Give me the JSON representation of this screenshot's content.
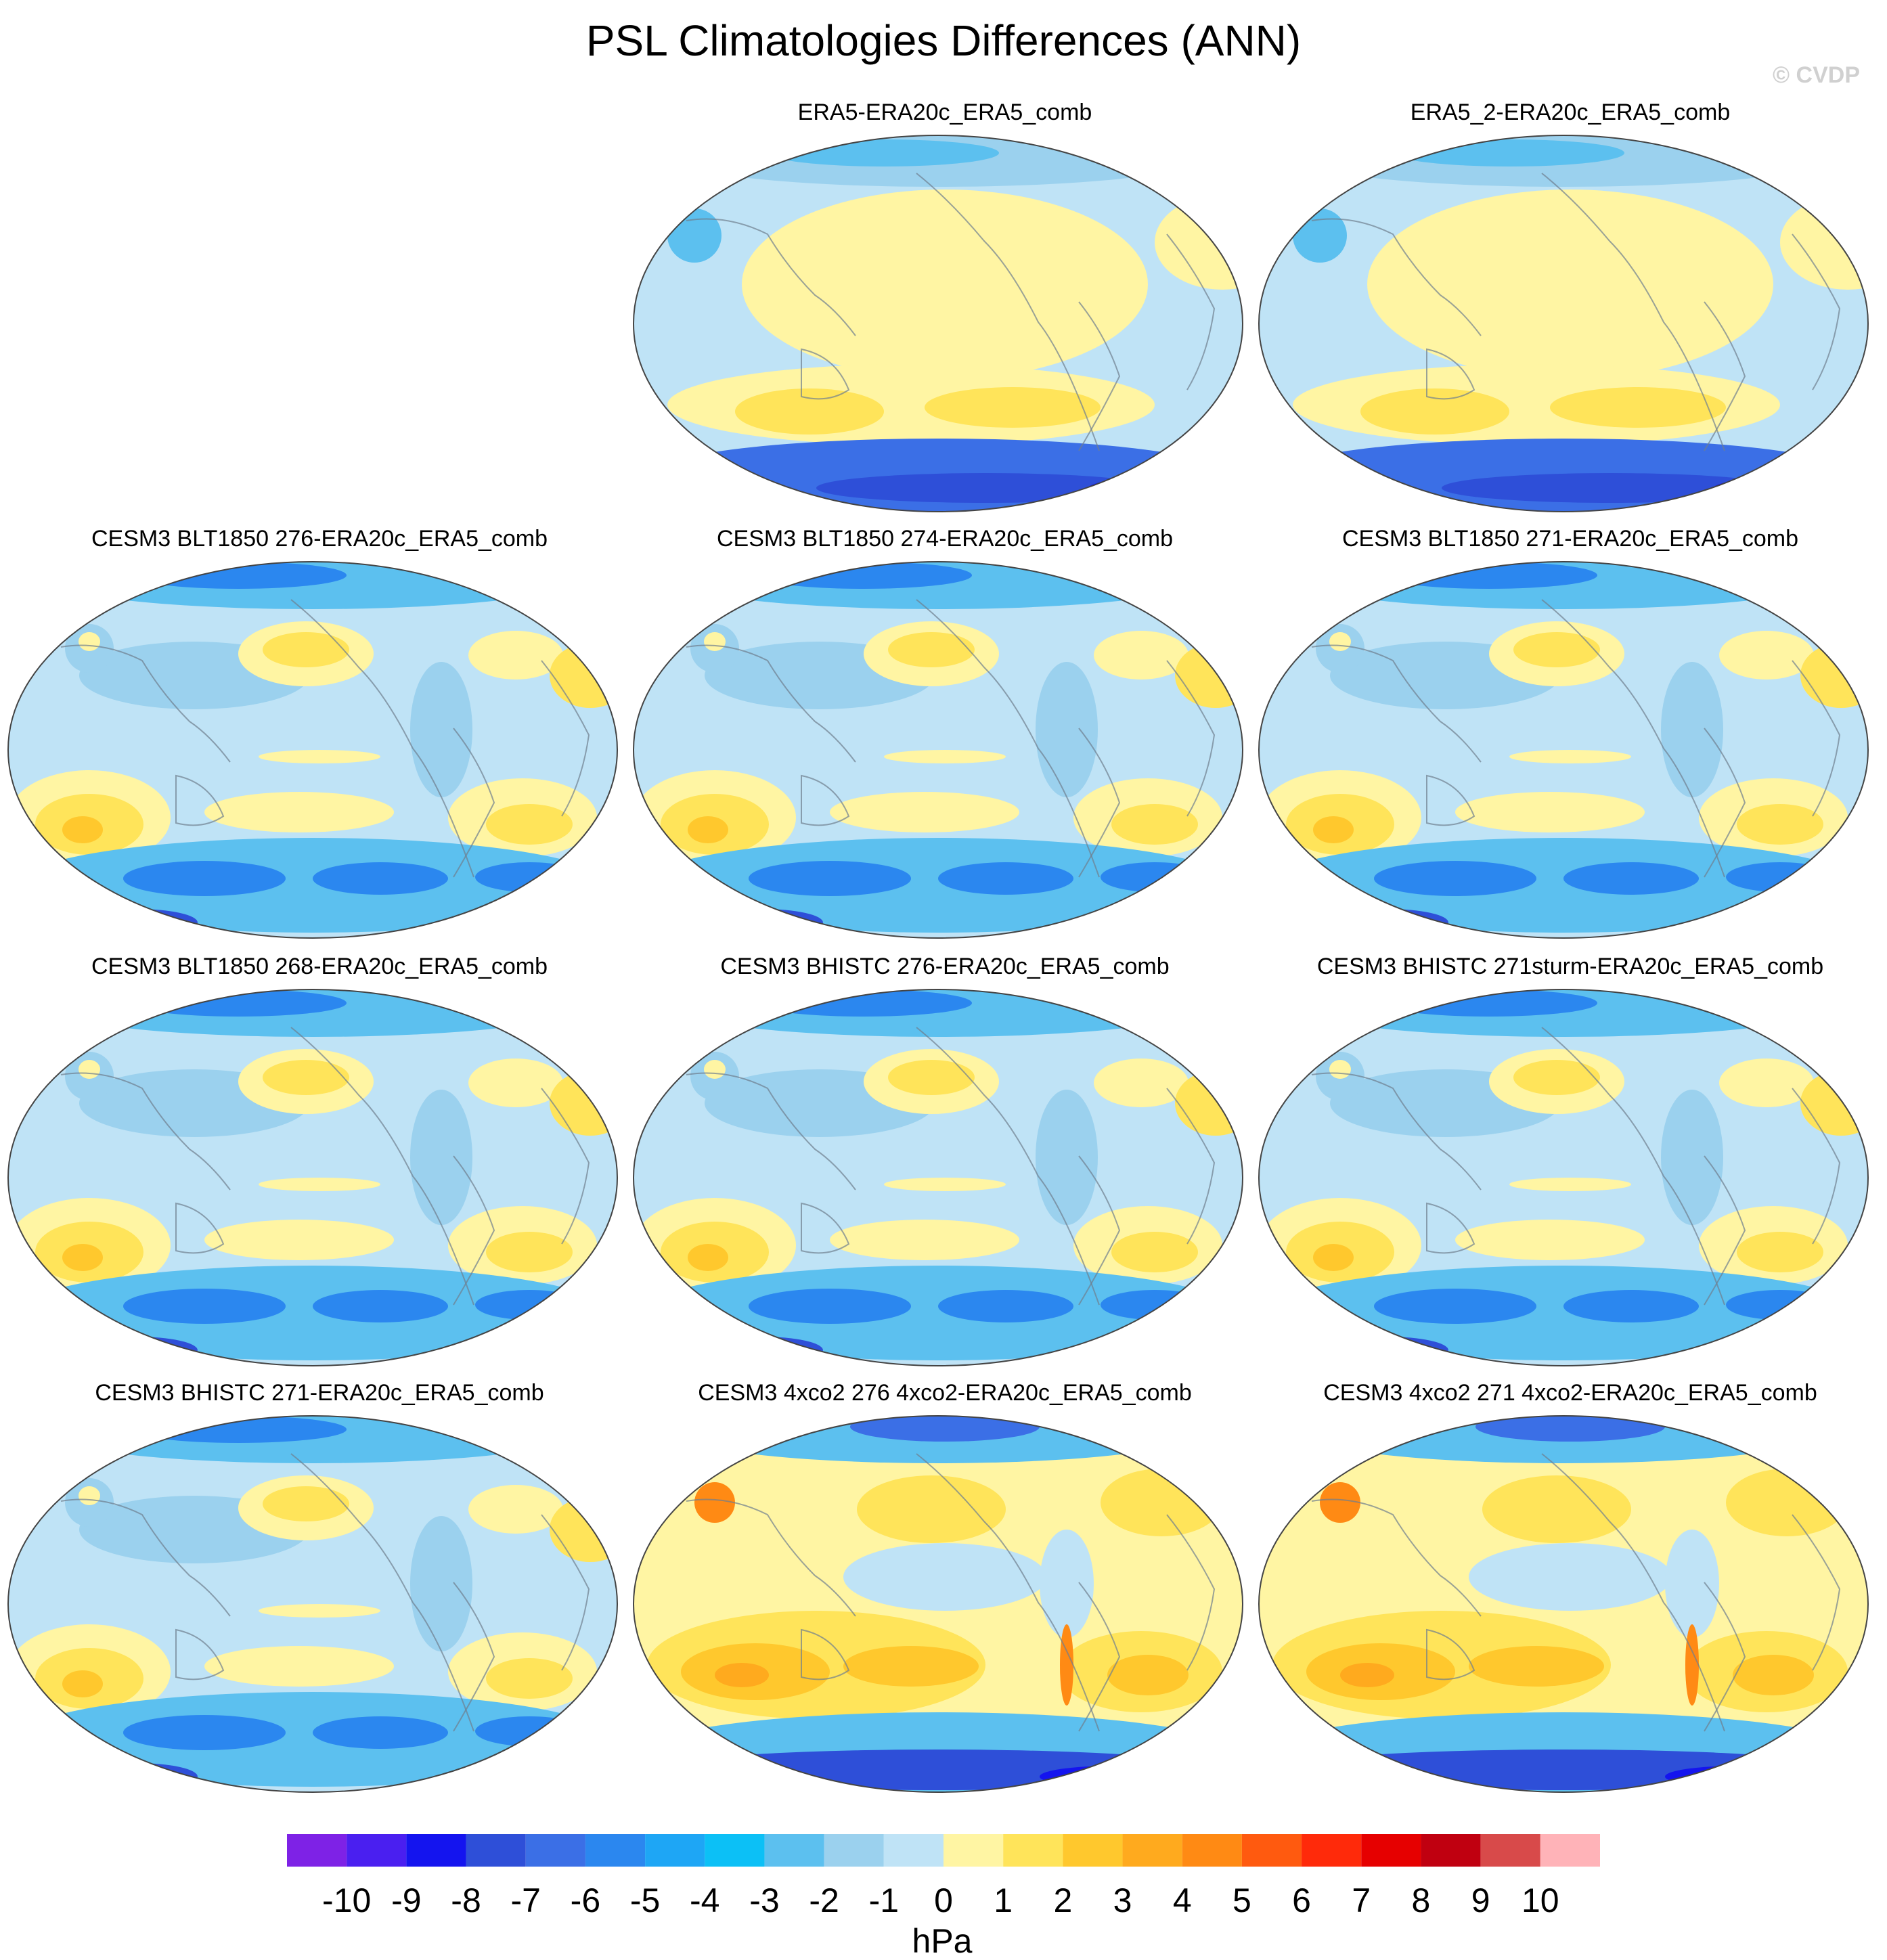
{
  "title": "PSL Climatologies Differences (ANN)",
  "watermark": "© CVDP",
  "units": "hPa",
  "colorbar": {
    "labels": [
      "-10",
      "-9",
      "-8",
      "-7",
      "-6",
      "-5",
      "-4",
      "-3",
      "-2",
      "-1",
      "0",
      "1",
      "2",
      "3",
      "4",
      "5",
      "6",
      "7",
      "8",
      "9",
      "10"
    ],
    "colors": [
      "#7e22e6",
      "#4a1ff0",
      "#1414ef",
      "#2e4fd8",
      "#3b6fe6",
      "#2b87ef",
      "#1ea6f5",
      "#0cc0f6",
      "#5cc0ef",
      "#9bd1ee",
      "#bfe3f6",
      "#fff5a3",
      "#ffe45a",
      "#ffc82d",
      "#ffaa1e",
      "#ff8a14",
      "#ff5a0f",
      "#ff2a0a",
      "#e60000",
      "#c00010",
      "#d84a4a",
      "#ffb3b8"
    ]
  },
  "panels": [
    {
      "id": "p1",
      "title": "ERA5-ERA20c_ERA5_comb",
      "style": "reanalysis"
    },
    {
      "id": "p2",
      "title": "ERA5_2-ERA20c_ERA5_comb",
      "style": "reanalysis"
    },
    {
      "id": "p3",
      "title": "CESM3 BLT1850 276-ERA20c_ERA5_comb",
      "style": "model"
    },
    {
      "id": "p4",
      "title": "CESM3 BLT1850 274-ERA20c_ERA5_comb",
      "style": "model"
    },
    {
      "id": "p5",
      "title": "CESM3 BLT1850 271-ERA20c_ERA5_comb",
      "style": "model"
    },
    {
      "id": "p6",
      "title": "CESM3 BLT1850 268-ERA20c_ERA5_comb",
      "style": "model"
    },
    {
      "id": "p7",
      "title": "CESM3 BHISTC 276-ERA20c_ERA5_comb",
      "style": "model"
    },
    {
      "id": "p8",
      "title": "CESM3 BHISTC 271sturm-ERA20c_ERA5_comb",
      "style": "model"
    },
    {
      "id": "p9",
      "title": "CESM3 BHISTC 271-ERA20c_ERA5_comb",
      "style": "model"
    },
    {
      "id": "p10",
      "title": "CESM3 4xco2 276 4xco2-ERA20c_ERA5_comb",
      "style": "warm"
    },
    {
      "id": "p11",
      "title": "CESM3 4xco2 271 4xco2-ERA20c_ERA5_comb",
      "style": "warm"
    }
  ]
}
